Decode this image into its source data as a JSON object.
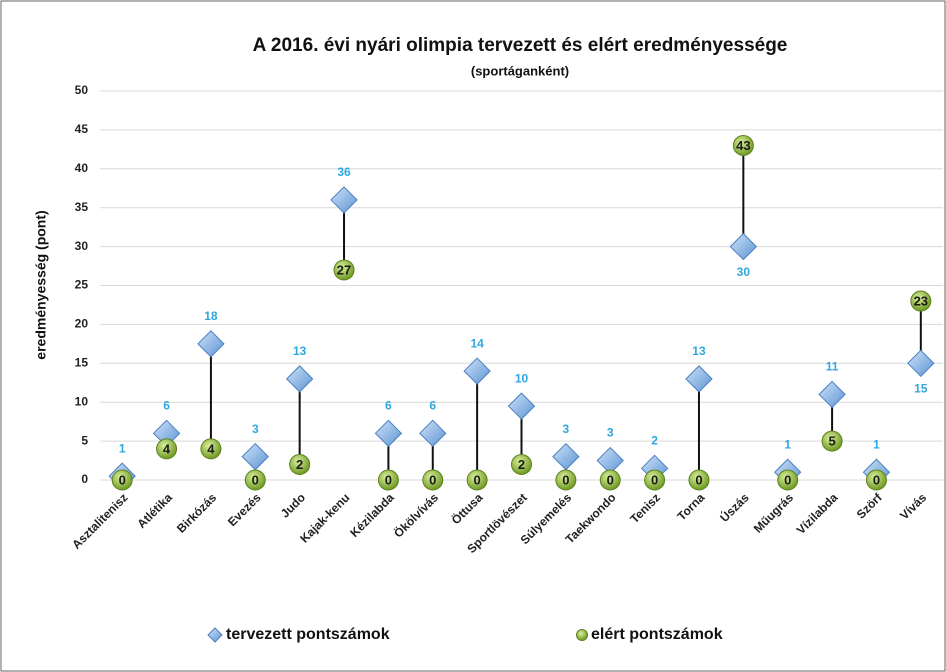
{
  "chart_data": {
    "type": "dot",
    "title": "A 2016. évi nyári olimpia tervezett és elért eredményessége",
    "subtitle": "(sportáganként)",
    "y_label": "eredményesség (pont)",
    "categories": [
      "Asztalitenisz",
      "Atlétika",
      "Birkózás",
      "Evezés",
      "Judo",
      "Kajak-kenu",
      "Kézilabda",
      "Ökölvívás",
      "Öttusa",
      "Sportlövészet",
      "Súlyemelés",
      "Taekwondo",
      "Tenisz",
      "Torna",
      "Úszás",
      "Műugrás",
      "Vízilabda",
      "Szörf",
      "Vívás"
    ],
    "series": [
      {
        "name": "tervezett pontszámok",
        "color": "#7fb2e5",
        "marker": "diamond",
        "values": [
          0.5,
          6,
          17.5,
          3,
          13,
          36,
          6,
          6,
          14,
          9.5,
          3,
          2.5,
          1.5,
          13,
          30,
          1,
          11,
          1,
          15
        ],
        "value_labels": [
          "1",
          "6",
          "18",
          "3",
          "13",
          "36",
          "6",
          "6",
          "14",
          "10",
          "3",
          "3",
          "2",
          "13",
          "30",
          "1",
          "11",
          "1",
          "15"
        ]
      },
      {
        "name": "elért pontszámok",
        "color": "#9bc53d",
        "marker": "circle",
        "values": [
          0,
          4,
          4,
          0,
          2,
          27,
          0,
          0,
          0,
          2,
          0,
          0,
          0,
          0,
          43,
          0,
          5,
          0,
          23
        ]
      }
    ],
    "ylim": [
      0,
      50
    ],
    "yticks": [
      0,
      5,
      10,
      15,
      20,
      25,
      30,
      35,
      40,
      45,
      50
    ],
    "grid": true,
    "high_low_lines": true,
    "legend": "bottom"
  }
}
